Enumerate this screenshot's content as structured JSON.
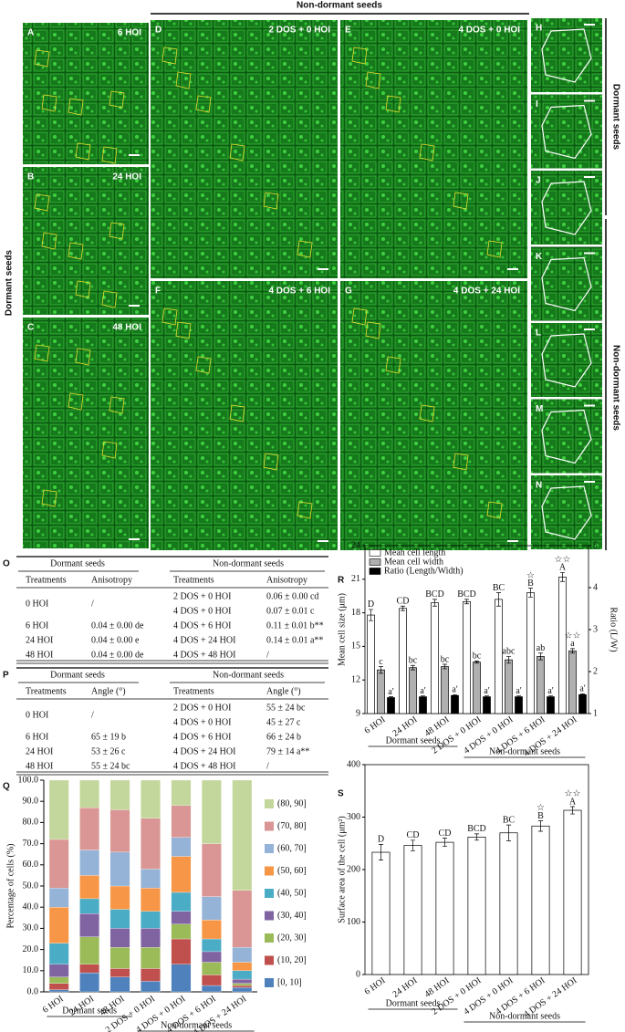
{
  "header": {
    "top": "Non-dormant seeds",
    "left": "Dormant seeds",
    "right_top": "Dormant seeds",
    "right_bottom": "Non-dormant seeds"
  },
  "panels": [
    {
      "letter": "A",
      "label": "6 HOI"
    },
    {
      "letter": "B",
      "label": "24 HOI"
    },
    {
      "letter": "C",
      "label": "48 HOI"
    },
    {
      "letter": "D",
      "label": "2 DOS + 0 HOI"
    },
    {
      "letter": "E",
      "label": "4 DOS + 0 HOI"
    },
    {
      "letter": "F",
      "label": "4 DOS + 6 HOI"
    },
    {
      "letter": "G",
      "label": "4 DOS + 24 HOI"
    },
    {
      "letter": "H"
    },
    {
      "letter": "I"
    },
    {
      "letter": "J"
    },
    {
      "letter": "K"
    },
    {
      "letter": "L"
    },
    {
      "letter": "M"
    },
    {
      "letter": "N"
    }
  ],
  "tables": [
    {
      "letter": "O",
      "groups": [
        "Dormant seeds",
        "Non-dormant seeds"
      ],
      "columns": [
        "Treatments",
        "Anisotropy",
        "Treatments",
        "Anisotropy"
      ],
      "dormant_rows": [
        [
          "0 HOI",
          "/"
        ],
        [
          "6 HOI",
          "0.04 ± 0.00 de"
        ],
        [
          "24 HOI",
          "0.04 ± 0.00 e"
        ],
        [
          "48 HOI",
          "0.04 ± 0.00 de"
        ]
      ],
      "nondormant_rows": [
        [
          "2 DOS + 0 HOI",
          "0.06 ± 0.00 cd"
        ],
        [
          "4 DOS + 0 HOI",
          "0.07 ± 0.01 c"
        ],
        [
          "4 DOS + 6 HOI",
          "0.11 ± 0.01 b**"
        ],
        [
          "4 DOS + 24 HOI",
          "0.14 ± 0.01 a**"
        ],
        [
          "4 DOS + 48 HOI",
          "/"
        ]
      ]
    },
    {
      "letter": "P",
      "groups": [
        "Dormant seeds",
        "Non-dormant seeds"
      ],
      "columns": [
        "Treatments",
        "Angle (°)",
        "Treatments",
        "Angle (°)"
      ],
      "dormant_rows": [
        [
          "0 HOI",
          "/"
        ],
        [
          "6 HOI",
          "65 ± 19 b"
        ],
        [
          "24 HOI",
          "53 ± 26 c"
        ],
        [
          "48 HOI",
          "55 ± 24 bc"
        ]
      ],
      "nondormant_rows": [
        [
          "2 DOS + 0 HOI",
          "55 ± 24 bc"
        ],
        [
          "4 DOS + 0 HOI",
          "45 ± 27 c"
        ],
        [
          "4 DOS + 6 HOI",
          "66 ± 24 b"
        ],
        [
          "4 DOS + 24 HOI",
          "79 ± 14 a**"
        ],
        [
          "4 DOS + 48 HOI",
          "/"
        ]
      ]
    }
  ],
  "chart_data": [
    {
      "type": "stacked_bar",
      "letter": "Q",
      "ylabel": "Percentage of cells (%)",
      "categories": [
        "6 HOI",
        "24 HOI",
        "48 HOI",
        "2 DOS + 0 HOI",
        "4 DOS + 0 HOI",
        "4 DOS + 6 HOI",
        "4 DOS + 24 HOI"
      ],
      "group_labels": [
        "Dormant seeds",
        "Non-dormant seeds"
      ],
      "ylim": [
        0,
        100
      ],
      "yticks": [
        {
          "value": 0,
          "label": "0.0"
        },
        {
          "value": 10,
          "label": "10.0"
        },
        {
          "value": 20,
          "label": "20.0"
        },
        {
          "value": 30,
          "label": "30.0"
        },
        {
          "value": 40,
          "label": "40.0"
        },
        {
          "value": 50,
          "label": "50.0"
        },
        {
          "value": 60,
          "label": "60.0"
        },
        {
          "value": 70,
          "label": "70.0"
        },
        {
          "value": 80,
          "label": "80.0"
        },
        {
          "value": 90,
          "label": "90.0"
        },
        {
          "value": 100,
          "label": "100.0"
        }
      ],
      "series": [
        {
          "name": "[0, 10]",
          "color": "#4f81bd",
          "values": [
            1,
            9,
            7,
            5,
            13,
            3,
            2
          ]
        },
        {
          "name": "(10, 20]",
          "color": "#c0504d",
          "values": [
            3,
            4,
            4,
            6,
            12,
            5,
            1
          ]
        },
        {
          "name": "(20, 30]",
          "color": "#9bbb59",
          "values": [
            3,
            13,
            10,
            10,
            7,
            6,
            1
          ]
        },
        {
          "name": "(30, 40]",
          "color": "#8064a2",
          "values": [
            6,
            11,
            9,
            9,
            6,
            5,
            2
          ]
        },
        {
          "name": "(40, 50]",
          "color": "#4bacc6",
          "values": [
            10,
            7,
            9,
            8,
            9,
            6,
            4
          ]
        },
        {
          "name": "(50, 60]",
          "color": "#f79646",
          "values": [
            17,
            11,
            11,
            11,
            17,
            9,
            4
          ]
        },
        {
          "name": "(60, 70]",
          "color": "#95b3d7",
          "values": [
            9,
            12,
            16,
            9,
            9,
            11,
            7
          ]
        },
        {
          "name": "(70, 80]",
          "color": "#d99694",
          "values": [
            23,
            20,
            20,
            24,
            15,
            25,
            27
          ]
        },
        {
          "name": "(80, 90]",
          "color": "#c3d69b",
          "values": [
            28,
            13,
            14,
            18,
            12,
            30,
            52
          ]
        }
      ]
    },
    {
      "type": "bar_error",
      "letter": "R",
      "ylabel": "Mean cell size (μm)",
      "y2label": "Ratio (L/W)",
      "categories": [
        "6 HOI",
        "24 HOI",
        "48 HOI",
        "2 DOS + 0 HOI",
        "4 DOS + 0 HOI",
        "4 DOS + 6 HOI",
        "4 DOS + 24 HOI"
      ],
      "group_labels": [
        "Dormant seeds",
        "Non-dormant seeds"
      ],
      "ylim": [
        9,
        24
      ],
      "yticks": [
        9,
        12,
        15,
        18,
        21,
        24
      ],
      "y2lim": [
        1,
        5
      ],
      "y2ticks": [
        1,
        2,
        3,
        4,
        5
      ],
      "series": [
        {
          "name": "Mean cell length",
          "color": "#ffffff",
          "values": [
            17.8,
            18.4,
            18.9,
            19.0,
            19.2,
            19.8,
            21.2
          ],
          "errors": [
            0.5,
            0.2,
            0.3,
            0.2,
            0.6,
            0.4,
            0.4
          ],
          "letters": [
            "D",
            "CD",
            "BCD",
            "BCD",
            "BC",
            "B",
            "A"
          ],
          "stars": [
            null,
            null,
            null,
            null,
            null,
            "☆",
            "☆☆"
          ]
        },
        {
          "name": "Mean cell width",
          "color": "#b0b0b0",
          "values": [
            12.9,
            13.1,
            13.2,
            13.6,
            13.8,
            14.1,
            14.6
          ],
          "errors": [
            0.3,
            0.2,
            0.2,
            0.1,
            0.3,
            0.3,
            0.2
          ],
          "letters": [
            "c",
            "bc",
            "bc",
            "bc",
            "abc",
            "ab",
            "a"
          ],
          "stars": [
            null,
            null,
            null,
            null,
            null,
            null,
            "☆☆"
          ]
        },
        {
          "name": "Ratio (Length/Width)",
          "color": "#000000",
          "axis": "y2",
          "values": [
            1.38,
            1.4,
            1.43,
            1.4,
            1.4,
            1.4,
            1.45
          ],
          "errors": [
            0.02,
            0.02,
            0.02,
            0.02,
            0.02,
            0.02,
            0.02
          ],
          "letters": [
            "a'",
            "a'",
            "a'",
            "a'",
            "a'",
            "a'",
            "a'"
          ],
          "stars": [
            null,
            null,
            null,
            null,
            null,
            null,
            null
          ]
        }
      ]
    },
    {
      "type": "bar_error",
      "letter": "S",
      "ylabel": "Surface area of the cell (μm²)",
      "categories": [
        "6 HOI",
        "24 HOI",
        "48 HOI",
        "2 DOS + 0 HOI",
        "4 DOS + 0 HOI",
        "4 DOS + 6 HOI",
        "4 DOS + 24 HOI"
      ],
      "group_labels": [
        "Dormant seeds",
        "Non-dormant seeds"
      ],
      "ylim": [
        0,
        400
      ],
      "yticks": [
        0,
        100,
        200,
        300,
        400
      ],
      "series": [
        {
          "name": null,
          "color": "#ffffff",
          "values": [
            233,
            246,
            252,
            262,
            270,
            283,
            313
          ],
          "errors": [
            15,
            10,
            8,
            6,
            15,
            10,
            7
          ],
          "letters": [
            "D",
            "CD",
            "CD",
            "BCD",
            "BC",
            "B",
            "A"
          ],
          "stars": [
            null,
            null,
            null,
            null,
            null,
            "☆",
            "☆☆"
          ]
        }
      ]
    }
  ]
}
